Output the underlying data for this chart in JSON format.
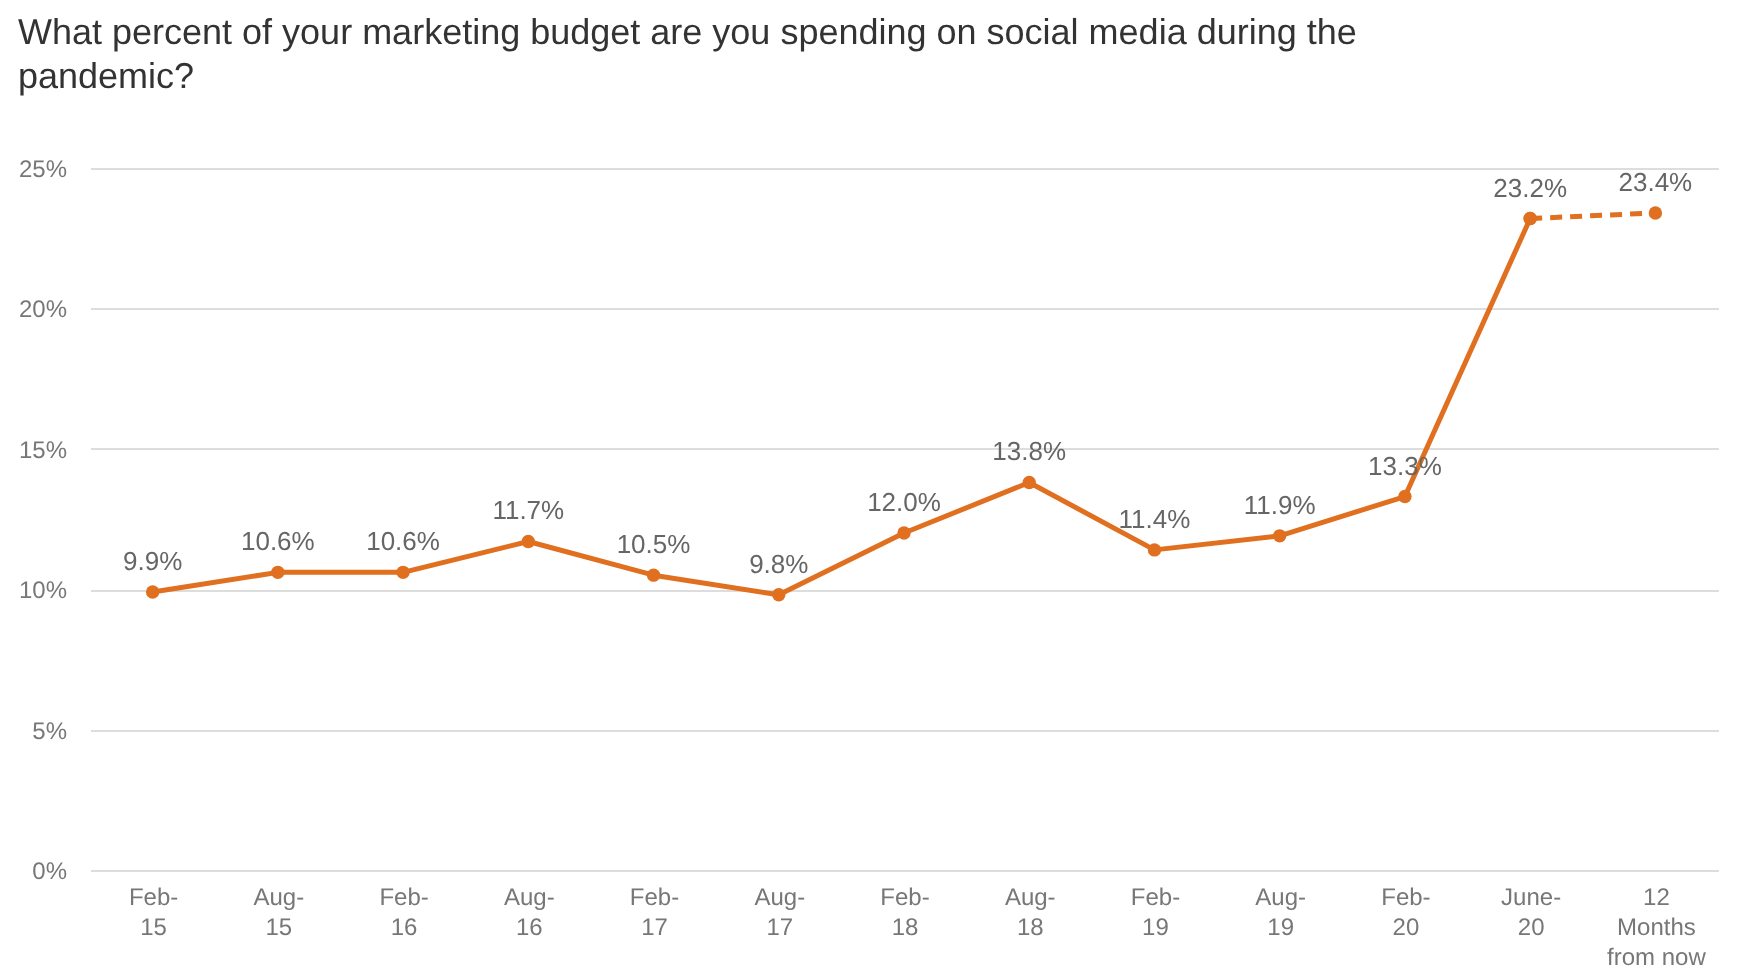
{
  "chart_data": {
    "type": "line",
    "title": "What percent of your marketing budget are you spending on social media during the pandemic?",
    "categories": [
      "Feb-15",
      "Aug-15",
      "Feb-16",
      "Aug-16",
      "Feb-17",
      "Aug-17",
      "Feb-18",
      "Aug-18",
      "Feb-19",
      "Aug-19",
      "Feb-20",
      "June-20",
      "12 Months from now"
    ],
    "series": [
      {
        "color": "#e07020",
        "line_style": "solid",
        "values": [
          9.9,
          10.6,
          10.6,
          11.7,
          10.5,
          9.8,
          12.0,
          13.8,
          11.4,
          11.9,
          13.3,
          23.2,
          null
        ],
        "value_labels": [
          "9.9%",
          "10.6%",
          "10.6%",
          "11.7%",
          "10.5%",
          "9.8%",
          "12.0%",
          "13.8%",
          "11.4%",
          "11.9%",
          "13.3%",
          "23.2%",
          null
        ]
      },
      {
        "color": "#e07020",
        "line_style": "dashed",
        "values": [
          null,
          null,
          null,
          null,
          null,
          null,
          null,
          null,
          null,
          null,
          null,
          23.2,
          23.4
        ],
        "value_labels": [
          null,
          null,
          null,
          null,
          null,
          null,
          null,
          null,
          null,
          null,
          null,
          null,
          "23.4%"
        ]
      }
    ],
    "ylim": [
      0,
      25
    ],
    "yticks": [
      {
        "value": 0,
        "label": "0%"
      },
      {
        "value": 5,
        "label": "5%"
      },
      {
        "value": 10,
        "label": "10%"
      },
      {
        "value": 15,
        "label": "15%"
      },
      {
        "value": 20,
        "label": "20%"
      },
      {
        "value": 25,
        "label": "25%"
      }
    ],
    "grid": "y",
    "marker": "circle"
  }
}
